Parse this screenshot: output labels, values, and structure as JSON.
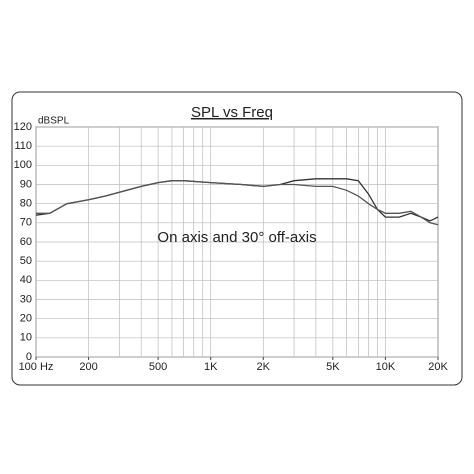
{
  "chart_data": {
    "type": "line",
    "title": "SPL vs Freq",
    "y_label": "dBSPL",
    "annotation": "On axis and 30° off-axis",
    "log_x": true,
    "grid": true,
    "x": [
      100,
      120,
      150,
      200,
      250,
      300,
      400,
      500,
      600,
      700,
      1000,
      1500,
      2000,
      2500,
      3000,
      4000,
      5000,
      6000,
      7000,
      8000,
      9000,
      10000,
      12000,
      14000,
      16000,
      18000,
      20000
    ],
    "series": [
      {
        "color": "#333333",
        "values": [
          74,
          75,
          80,
          82,
          84,
          86,
          89,
          91,
          92,
          92,
          91,
          90,
          89,
          90,
          92,
          93,
          93,
          93,
          92,
          85,
          77,
          73,
          73,
          75,
          73,
          71,
          73
        ]
      },
      {
        "color": "#555555",
        "values": [
          75,
          75,
          80,
          82,
          84,
          86,
          89,
          91,
          92,
          92,
          91,
          90,
          89,
          90,
          90,
          89,
          89,
          87,
          84,
          80,
          77,
          75,
          75,
          76,
          73,
          70,
          69
        ]
      }
    ],
    "xlim": [
      100,
      20000
    ],
    "xticks": [
      {
        "value": 100,
        "label": "100 Hz"
      },
      200,
      500,
      {
        "value": 1000,
        "label": "1K"
      },
      {
        "value": 2000,
        "label": "2K"
      },
      {
        "value": 5000,
        "label": "5K"
      },
      {
        "value": 10000,
        "label": "10K"
      },
      {
        "value": 20000,
        "label": "20K"
      }
    ],
    "xgrid": [
      100,
      200,
      300,
      400,
      500,
      600,
      700,
      800,
      900,
      1000,
      2000,
      3000,
      4000,
      5000,
      6000,
      7000,
      8000,
      9000,
      10000,
      20000
    ],
    "ylim": [
      0,
      120
    ],
    "yticks": [
      0,
      10,
      20,
      30,
      40,
      50,
      60,
      70,
      80,
      90,
      100,
      110,
      120
    ]
  }
}
